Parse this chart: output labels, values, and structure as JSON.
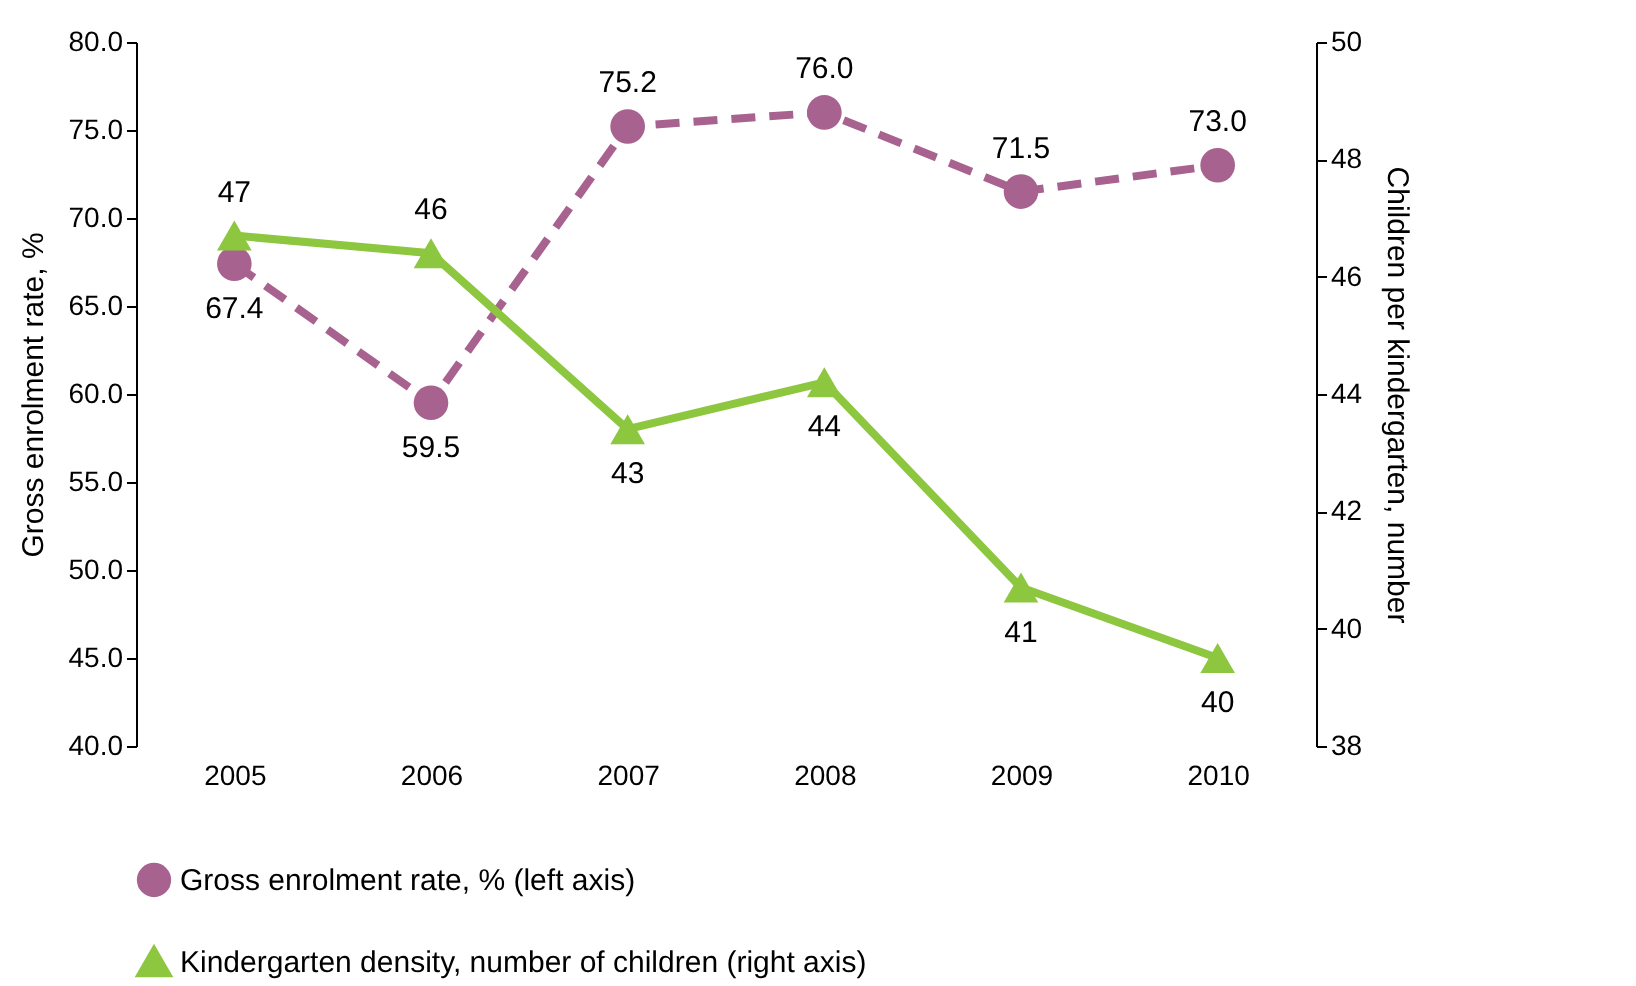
{
  "chart_data": {
    "type": "line",
    "categories": [
      "2005",
      "2006",
      "2007",
      "2008",
      "2009",
      "2010"
    ],
    "ylabel": "Gross enrolment rate, %",
    "y2label": "Children per kindergarten, number",
    "ylim": [
      40,
      80
    ],
    "yticks": [
      {
        "value": 40,
        "label": "40.0"
      },
      {
        "value": 45,
        "label": "45.0"
      },
      {
        "value": 50,
        "label": "50.0"
      },
      {
        "value": 55,
        "label": "55.0"
      },
      {
        "value": 60,
        "label": "60.0"
      },
      {
        "value": 65,
        "label": "65.0"
      },
      {
        "value": 70,
        "label": "70.0"
      },
      {
        "value": 75,
        "label": "75.0"
      },
      {
        "value": 80,
        "label": "80.0"
      }
    ],
    "y2lim": [
      38,
      50
    ],
    "y2ticks": [
      38,
      40,
      42,
      44,
      46,
      48,
      50
    ],
    "series": [
      {
        "name": "Gross enrolment rate, % (left axis)",
        "color": "#a8628f",
        "values": [
          67.4,
          59.5,
          75.2,
          76.0,
          71.5,
          73.0
        ],
        "value_labels": [
          "67.4",
          "59.5",
          "75.2",
          "76.0",
          "71.5",
          "73.0"
        ],
        "marker": "circle",
        "line_style": "dashed"
      },
      {
        "name": "Kindergarten density, number of children (right axis)",
        "color": "#8dc63f",
        "values": [
          46.7,
          46.4,
          43.4,
          44.2,
          40.7,
          39.5
        ],
        "value_labels": [
          "47",
          "46",
          "43",
          "44",
          "41",
          "40"
        ],
        "marker": "triangle",
        "line_style": "solid",
        "axis": "y2"
      }
    ],
    "grid": false,
    "legend": "bottom"
  }
}
